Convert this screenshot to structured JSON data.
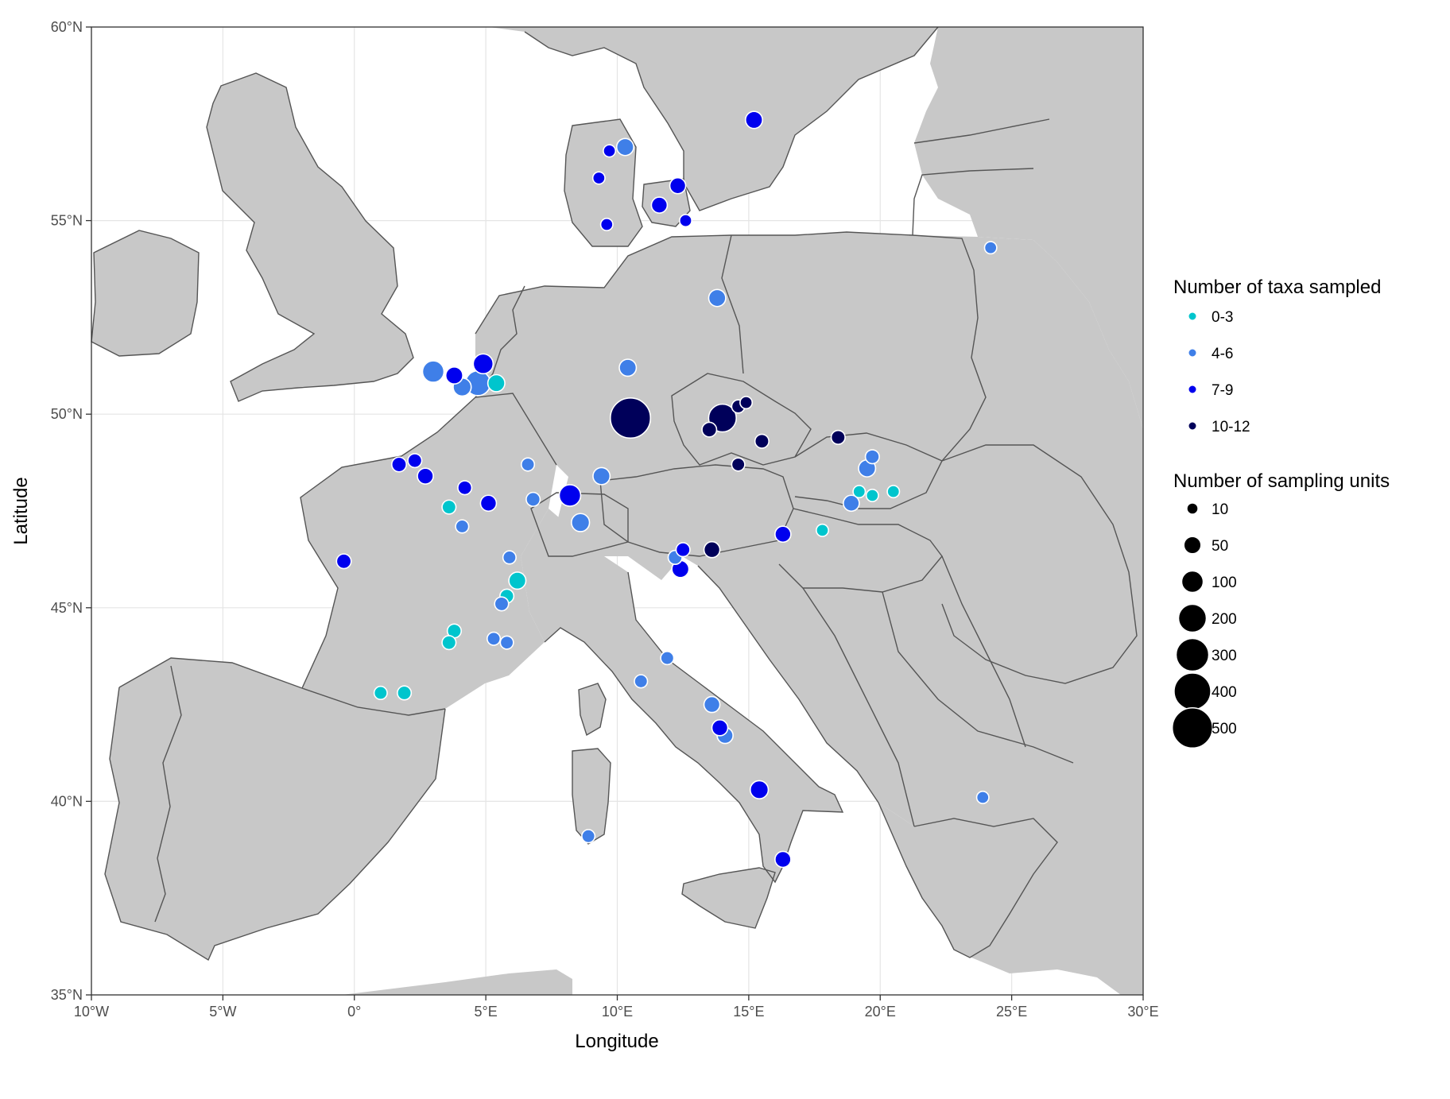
{
  "map": {
    "xlabel": "Longitude",
    "ylabel": "Latitude",
    "x_ticks": [
      "10°W",
      "5°W",
      "0°",
      "5°E",
      "10°E",
      "15°E",
      "20°E",
      "25°E",
      "30°E"
    ],
    "y_ticks": [
      "35°N",
      "40°N",
      "45°N",
      "50°N",
      "55°N",
      "60°N"
    ],
    "xlim": [
      -10,
      30
    ],
    "ylim": [
      35,
      60
    ],
    "grid": true,
    "land_color": "#c8c8c8",
    "border_color": "#555555"
  },
  "legend": {
    "position": "right",
    "taxa": {
      "title": "Number of taxa sampled",
      "entries": [
        {
          "label": "0-3",
          "color": "#00c5cd"
        },
        {
          "label": "4-6",
          "color": "#3f7fe8"
        },
        {
          "label": "7-9",
          "color": "#0000ee"
        },
        {
          "label": "10-12",
          "color": "#00005a"
        }
      ]
    },
    "units": {
      "title": "Number of sampling units",
      "entries": [
        {
          "label": "10",
          "value": 10
        },
        {
          "label": "50",
          "value": 50
        },
        {
          "label": "100",
          "value": 100
        },
        {
          "label": "200",
          "value": 200
        },
        {
          "label": "300",
          "value": 300
        },
        {
          "label": "400",
          "value": 400
        },
        {
          "label": "500",
          "value": 500
        }
      ]
    }
  },
  "chart_data": {
    "type": "scatter",
    "xlabel": "Longitude",
    "ylabel": "Latitude",
    "xlim": [
      -10,
      30
    ],
    "ylim": [
      35,
      60
    ],
    "series": [
      {
        "name": "0-3",
        "points": [
          {
            "lon": 5.4,
            "lat": 50.8,
            "units": 50
          },
          {
            "lon": 3.6,
            "lat": 47.6,
            "units": 25
          },
          {
            "lon": 6.2,
            "lat": 45.7,
            "units": 50
          },
          {
            "lon": 5.8,
            "lat": 45.3,
            "units": 25
          },
          {
            "lon": 3.8,
            "lat": 44.4,
            "units": 25
          },
          {
            "lon": 3.6,
            "lat": 44.1,
            "units": 25
          },
          {
            "lon": 1.0,
            "lat": 42.8,
            "units": 20
          },
          {
            "lon": 1.9,
            "lat": 42.8,
            "units": 25
          },
          {
            "lon": 19.2,
            "lat": 48.0,
            "units": 15
          },
          {
            "lon": 19.7,
            "lat": 47.9,
            "units": 15
          },
          {
            "lon": 20.5,
            "lat": 48.0,
            "units": 15
          },
          {
            "lon": 17.8,
            "lat": 47.0,
            "units": 15
          }
        ]
      },
      {
        "name": "4-6",
        "points": [
          {
            "lon": 3.0,
            "lat": 51.1,
            "units": 100
          },
          {
            "lon": 4.1,
            "lat": 50.7,
            "units": 60
          },
          {
            "lon": 4.7,
            "lat": 50.8,
            "units": 150
          },
          {
            "lon": 10.4,
            "lat": 51.2,
            "units": 50
          },
          {
            "lon": 13.8,
            "lat": 53.0,
            "units": 50
          },
          {
            "lon": 10.3,
            "lat": 56.9,
            "units": 50
          },
          {
            "lon": 9.4,
            "lat": 48.4,
            "units": 50
          },
          {
            "lon": 8.6,
            "lat": 47.2,
            "units": 60
          },
          {
            "lon": 6.6,
            "lat": 48.7,
            "units": 20
          },
          {
            "lon": 6.8,
            "lat": 47.8,
            "units": 25
          },
          {
            "lon": 4.1,
            "lat": 47.1,
            "units": 20
          },
          {
            "lon": 5.9,
            "lat": 46.3,
            "units": 20
          },
          {
            "lon": 5.6,
            "lat": 45.1,
            "units": 25
          },
          {
            "lon": 5.3,
            "lat": 44.2,
            "units": 20
          },
          {
            "lon": 5.8,
            "lat": 44.1,
            "units": 20
          },
          {
            "lon": 11.9,
            "lat": 43.7,
            "units": 20
          },
          {
            "lon": 10.9,
            "lat": 43.1,
            "units": 20
          },
          {
            "lon": 13.6,
            "lat": 42.5,
            "units": 40
          },
          {
            "lon": 14.1,
            "lat": 41.7,
            "units": 40
          },
          {
            "lon": 8.9,
            "lat": 39.1,
            "units": 20
          },
          {
            "lon": 19.5,
            "lat": 48.6,
            "units": 50
          },
          {
            "lon": 19.7,
            "lat": 48.9,
            "units": 25
          },
          {
            "lon": 18.9,
            "lat": 47.7,
            "units": 40
          },
          {
            "lon": 12.2,
            "lat": 46.3,
            "units": 25
          },
          {
            "lon": 24.2,
            "lat": 54.3,
            "units": 15
          },
          {
            "lon": 23.9,
            "lat": 40.1,
            "units": 15
          }
        ]
      },
      {
        "name": "7-9",
        "points": [
          {
            "lon": 15.2,
            "lat": 57.6,
            "units": 50
          },
          {
            "lon": 3.8,
            "lat": 51.0,
            "units": 50
          },
          {
            "lon": 4.9,
            "lat": 51.3,
            "units": 80
          },
          {
            "lon": 8.2,
            "lat": 47.9,
            "units": 100
          },
          {
            "lon": 1.7,
            "lat": 48.7,
            "units": 30
          },
          {
            "lon": 2.3,
            "lat": 48.8,
            "units": 25
          },
          {
            "lon": 2.7,
            "lat": 48.4,
            "units": 40
          },
          {
            "lon": 4.2,
            "lat": 48.1,
            "units": 25
          },
          {
            "lon": 5.1,
            "lat": 47.7,
            "units": 40
          },
          {
            "lon": -0.4,
            "lat": 46.2,
            "units": 30
          },
          {
            "lon": 12.4,
            "lat": 46.0,
            "units": 50
          },
          {
            "lon": 12.5,
            "lat": 46.5,
            "units": 25
          },
          {
            "lon": 16.3,
            "lat": 46.9,
            "units": 40
          },
          {
            "lon": 11.6,
            "lat": 55.4,
            "units": 40
          },
          {
            "lon": 12.3,
            "lat": 55.9,
            "units": 40
          },
          {
            "lon": 9.3,
            "lat": 56.1,
            "units": 15
          },
          {
            "lon": 9.7,
            "lat": 56.8,
            "units": 15
          },
          {
            "lon": 9.6,
            "lat": 54.9,
            "units": 15
          },
          {
            "lon": 12.6,
            "lat": 55.0,
            "units": 15
          },
          {
            "lon": 15.4,
            "lat": 40.3,
            "units": 60
          },
          {
            "lon": 16.3,
            "lat": 38.5,
            "units": 40
          },
          {
            "lon": 13.9,
            "lat": 41.9,
            "units": 40
          }
        ]
      },
      {
        "name": "10-12",
        "points": [
          {
            "lon": 10.5,
            "lat": 49.9,
            "units": 500
          },
          {
            "lon": 14.0,
            "lat": 49.9,
            "units": 200
          },
          {
            "lon": 13.5,
            "lat": 49.6,
            "units": 30
          },
          {
            "lon": 14.6,
            "lat": 50.2,
            "units": 20
          },
          {
            "lon": 15.5,
            "lat": 49.3,
            "units": 25
          },
          {
            "lon": 14.9,
            "lat": 50.3,
            "units": 15
          },
          {
            "lon": 14.6,
            "lat": 48.7,
            "units": 20
          },
          {
            "lon": 18.4,
            "lat": 49.4,
            "units": 25
          },
          {
            "lon": 13.6,
            "lat": 46.5,
            "units": 40
          }
        ]
      }
    ]
  }
}
